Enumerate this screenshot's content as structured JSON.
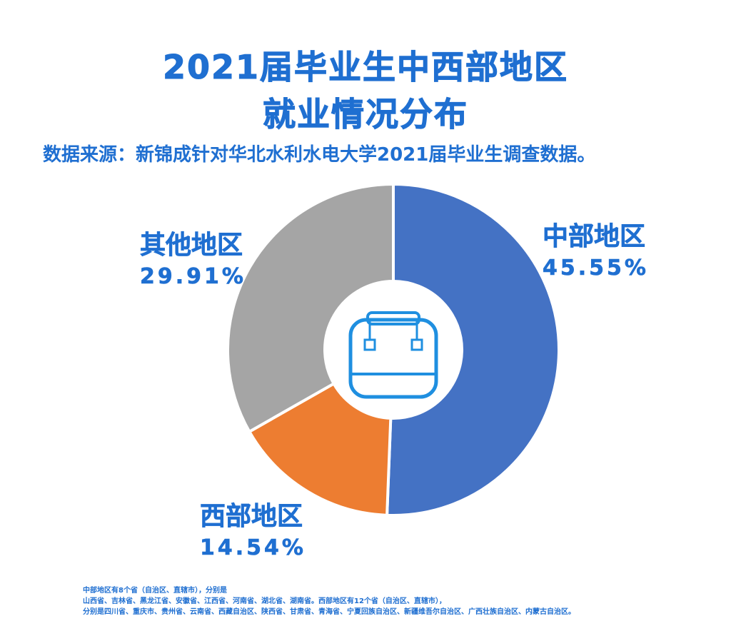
{
  "title": {
    "line1": "2021届毕业生中西部地区",
    "line2": "就业情况分布"
  },
  "source": "数据来源：新锦成针对华北水利水电大学2021届毕业生调查数据。",
  "chart_data": {
    "type": "pie",
    "donut": true,
    "categories": [
      "中部地区",
      "西部地区",
      "其他地区"
    ],
    "values": [
      45.55,
      14.54,
      29.91
    ],
    "value_labels": [
      "45.55%",
      "14.54%",
      "29.91%"
    ],
    "colors": [
      "#4472c4",
      "#ed7d31",
      "#a5a5a5"
    ],
    "center_icon": "bag-icon",
    "icon_color": "#1f8fe0"
  },
  "footnote": {
    "line1": "中部地区有8个省（自治区、直辖市），分别是",
    "line2": "山西省、吉林省、黑龙江省、安徽省、江西省、河南省、湖北省、湖南省。西部地区有12个省（自治区、直辖市），",
    "line3": "分别是四川省、重庆市、贵州省、云南省、西藏自治区、陕西省、甘肃省、青海省、宁夏回族自治区、新疆维吾尔自治区、广西壮族自治区、内蒙古自治区。"
  }
}
